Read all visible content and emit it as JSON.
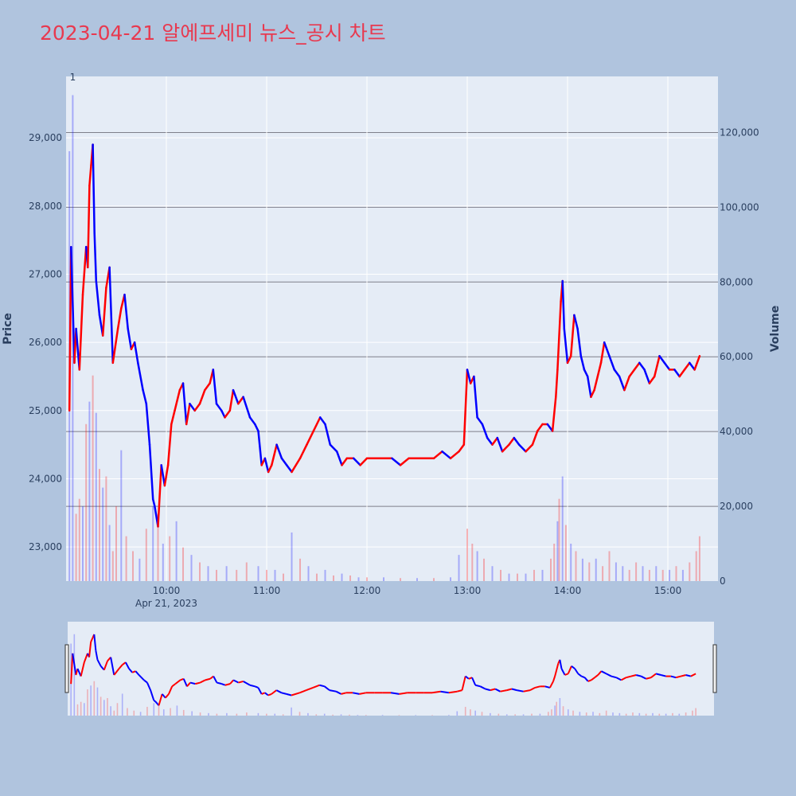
{
  "page": {
    "title": "2023-04-21 알에프세미 뉴스_공시 차트",
    "title_color": "#e8394f",
    "background": "#b0c4de",
    "plot_background": "#e5ecf6"
  },
  "chart_data": {
    "type": "candlestick",
    "x_range": [
      "09:00",
      "15:30"
    ],
    "price_range": [
      22500,
      29900
    ],
    "volume_range": [
      0,
      135000
    ],
    "x_ticks": [
      "10:00",
      "11:00",
      "12:00",
      "13:00",
      "14:00",
      "15:00"
    ],
    "x_date_label": "Apr 21, 2023",
    "price_ticks": [
      "23,000",
      "24,000",
      "25,000",
      "26,000",
      "27,000",
      "28,000",
      "29,000"
    ],
    "price_tick_values": [
      23000,
      24000,
      25000,
      26000,
      27000,
      28000,
      29000
    ],
    "volume_ticks": [
      "0",
      "20,000",
      "40,000",
      "60,000",
      "80,000",
      "100,000",
      "120,000"
    ],
    "volume_tick_values": [
      0,
      20000,
      40000,
      60000,
      80000,
      100000,
      120000
    ],
    "ylabel_left": "Price",
    "ylabel_right": "Volume",
    "annotation": "1",
    "up_color": "#ff0000",
    "down_color": "#0000ff",
    "grid": true,
    "rangeslider": true,
    "price_path": [
      [
        "09:02",
        25000
      ],
      [
        "09:03",
        27400
      ],
      [
        "09:05",
        25700
      ],
      [
        "09:06",
        26200
      ],
      [
        "09:08",
        25600
      ],
      [
        "09:10",
        26700
      ],
      [
        "09:12",
        27400
      ],
      [
        "09:13",
        27100
      ],
      [
        "09:14",
        28300
      ],
      [
        "09:15",
        28600
      ],
      [
        "09:16",
        28900
      ],
      [
        "09:17",
        27600
      ],
      [
        "09:18",
        26900
      ],
      [
        "09:20",
        26400
      ],
      [
        "09:22",
        26100
      ],
      [
        "09:24",
        26800
      ],
      [
        "09:26",
        27100
      ],
      [
        "09:28",
        25700
      ],
      [
        "09:31",
        26200
      ],
      [
        "09:33",
        26500
      ],
      [
        "09:35",
        26700
      ],
      [
        "09:37",
        26200
      ],
      [
        "09:39",
        25900
      ],
      [
        "09:41",
        26000
      ],
      [
        "09:43",
        25700
      ],
      [
        "09:46",
        25300
      ],
      [
        "09:48",
        25100
      ],
      [
        "09:50",
        24500
      ],
      [
        "09:52",
        23700
      ],
      [
        "09:53",
        23600
      ],
      [
        "09:55",
        23300
      ],
      [
        "09:57",
        24200
      ],
      [
        "09:59",
        23900
      ],
      [
        "10:01",
        24200
      ],
      [
        "10:03",
        24800
      ],
      [
        "10:05",
        25000
      ],
      [
        "10:08",
        25300
      ],
      [
        "10:10",
        25400
      ],
      [
        "10:12",
        24800
      ],
      [
        "10:14",
        25100
      ],
      [
        "10:17",
        25000
      ],
      [
        "10:20",
        25100
      ],
      [
        "10:23",
        25300
      ],
      [
        "10:26",
        25400
      ],
      [
        "10:28",
        25600
      ],
      [
        "10:30",
        25100
      ],
      [
        "10:33",
        25000
      ],
      [
        "10:35",
        24900
      ],
      [
        "10:38",
        25000
      ],
      [
        "10:40",
        25300
      ],
      [
        "10:43",
        25100
      ],
      [
        "10:46",
        25200
      ],
      [
        "10:50",
        24900
      ],
      [
        "10:53",
        24800
      ],
      [
        "10:55",
        24700
      ],
      [
        "10:57",
        24200
      ],
      [
        "10:59",
        24300
      ],
      [
        "11:01",
        24100
      ],
      [
        "11:03",
        24200
      ],
      [
        "11:06",
        24500
      ],
      [
        "11:09",
        24300
      ],
      [
        "11:12",
        24200
      ],
      [
        "11:15",
        24100
      ],
      [
        "11:20",
        24300
      ],
      [
        "11:24",
        24500
      ],
      [
        "11:28",
        24700
      ],
      [
        "11:32",
        24900
      ],
      [
        "11:35",
        24800
      ],
      [
        "11:38",
        24500
      ],
      [
        "11:42",
        24400
      ],
      [
        "11:45",
        24200
      ],
      [
        "11:48",
        24300
      ],
      [
        "11:52",
        24300
      ],
      [
        "11:56",
        24200
      ],
      [
        "12:00",
        24300
      ],
      [
        "12:05",
        24300
      ],
      [
        "12:10",
        24300
      ],
      [
        "12:15",
        24300
      ],
      [
        "12:20",
        24200
      ],
      [
        "12:25",
        24300
      ],
      [
        "12:30",
        24300
      ],
      [
        "12:35",
        24300
      ],
      [
        "12:40",
        24300
      ],
      [
        "12:45",
        24400
      ],
      [
        "12:50",
        24300
      ],
      [
        "12:55",
        24400
      ],
      [
        "12:58",
        24500
      ],
      [
        "13:00",
        25600
      ],
      [
        "13:02",
        25400
      ],
      [
        "13:04",
        25500
      ],
      [
        "13:06",
        24900
      ],
      [
        "13:09",
        24800
      ],
      [
        "13:12",
        24600
      ],
      [
        "13:15",
        24500
      ],
      [
        "13:18",
        24600
      ],
      [
        "13:21",
        24400
      ],
      [
        "13:25",
        24500
      ],
      [
        "13:28",
        24600
      ],
      [
        "13:31",
        24500
      ],
      [
        "13:35",
        24400
      ],
      [
        "13:39",
        24500
      ],
      [
        "13:42",
        24700
      ],
      [
        "13:45",
        24800
      ],
      [
        "13:48",
        24800
      ],
      [
        "13:51",
        24700
      ],
      [
        "13:53",
        25200
      ],
      [
        "13:54",
        25600
      ],
      [
        "13:56",
        26600
      ],
      [
        "13:57",
        26900
      ],
      [
        "13:58",
        26200
      ],
      [
        "14:00",
        25700
      ],
      [
        "14:02",
        25800
      ],
      [
        "14:04",
        26400
      ],
      [
        "14:06",
        26200
      ],
      [
        "14:08",
        25800
      ],
      [
        "14:10",
        25600
      ],
      [
        "14:12",
        25500
      ],
      [
        "14:14",
        25200
      ],
      [
        "14:16",
        25300
      ],
      [
        "14:18",
        25500
      ],
      [
        "14:20",
        25700
      ],
      [
        "14:22",
        26000
      ],
      [
        "14:25",
        25800
      ],
      [
        "14:28",
        25600
      ],
      [
        "14:31",
        25500
      ],
      [
        "14:34",
        25300
      ],
      [
        "14:37",
        25500
      ],
      [
        "14:40",
        25600
      ],
      [
        "14:43",
        25700
      ],
      [
        "14:46",
        25600
      ],
      [
        "14:49",
        25400
      ],
      [
        "14:52",
        25500
      ],
      [
        "14:55",
        25800
      ],
      [
        "14:58",
        25700
      ],
      [
        "15:01",
        25600
      ],
      [
        "15:04",
        25600
      ],
      [
        "15:07",
        25500
      ],
      [
        "15:10",
        25600
      ],
      [
        "15:13",
        25700
      ],
      [
        "15:16",
        25600
      ],
      [
        "15:19",
        25800
      ]
    ],
    "volume_bars": [
      [
        "09:02",
        115000,
        "down"
      ],
      [
        "09:04",
        130000,
        "down"
      ],
      [
        "09:06",
        18000,
        "up"
      ],
      [
        "09:08",
        22000,
        "up"
      ],
      [
        "09:10",
        20000,
        "down"
      ],
      [
        "09:12",
        42000,
        "up"
      ],
      [
        "09:14",
        48000,
        "down"
      ],
      [
        "09:16",
        55000,
        "up"
      ],
      [
        "09:18",
        45000,
        "down"
      ],
      [
        "09:20",
        30000,
        "up"
      ],
      [
        "09:22",
        25000,
        "down"
      ],
      [
        "09:24",
        28000,
        "up"
      ],
      [
        "09:26",
        15000,
        "down"
      ],
      [
        "09:28",
        8000,
        "up"
      ],
      [
        "09:30",
        20000,
        "up"
      ],
      [
        "09:33",
        35000,
        "down"
      ],
      [
        "09:36",
        12000,
        "up"
      ],
      [
        "09:40",
        8000,
        "up"
      ],
      [
        "09:44",
        6000,
        "down"
      ],
      [
        "09:48",
        14000,
        "up"
      ],
      [
        "09:52",
        20000,
        "down"
      ],
      [
        "09:55",
        18000,
        "up"
      ],
      [
        "09:58",
        10000,
        "down"
      ],
      [
        "10:02",
        12000,
        "up"
      ],
      [
        "10:06",
        16000,
        "down"
      ],
      [
        "10:10",
        9000,
        "up"
      ],
      [
        "10:15",
        7000,
        "down"
      ],
      [
        "10:20",
        5000,
        "up"
      ],
      [
        "10:25",
        4000,
        "down"
      ],
      [
        "10:30",
        3000,
        "up"
      ],
      [
        "10:36",
        4000,
        "down"
      ],
      [
        "10:42",
        3000,
        "up"
      ],
      [
        "10:48",
        5000,
        "up"
      ],
      [
        "10:55",
        4000,
        "down"
      ],
      [
        "11:00",
        3000,
        "up"
      ],
      [
        "11:05",
        3000,
        "down"
      ],
      [
        "11:10",
        2000,
        "up"
      ],
      [
        "11:15",
        13000,
        "down"
      ],
      [
        "11:20",
        6000,
        "up"
      ],
      [
        "11:25",
        4000,
        "down"
      ],
      [
        "11:30",
        2000,
        "up"
      ],
      [
        "11:35",
        3000,
        "down"
      ],
      [
        "11:40",
        1500,
        "up"
      ],
      [
        "11:45",
        2000,
        "down"
      ],
      [
        "11:50",
        1500,
        "up"
      ],
      [
        "11:55",
        1000,
        "down"
      ],
      [
        "12:00",
        1000,
        "up"
      ],
      [
        "12:10",
        1000,
        "down"
      ],
      [
        "12:20",
        800,
        "up"
      ],
      [
        "12:30",
        800,
        "down"
      ],
      [
        "12:40",
        800,
        "up"
      ],
      [
        "12:50",
        1000,
        "down"
      ],
      [
        "12:55",
        7000,
        "down"
      ],
      [
        "13:00",
        14000,
        "up"
      ],
      [
        "13:03",
        10000,
        "up"
      ],
      [
        "13:06",
        8000,
        "down"
      ],
      [
        "13:10",
        6000,
        "up"
      ],
      [
        "13:15",
        4000,
        "down"
      ],
      [
        "13:20",
        3000,
        "up"
      ],
      [
        "13:25",
        2000,
        "down"
      ],
      [
        "13:30",
        2000,
        "up"
      ],
      [
        "13:35",
        2000,
        "down"
      ],
      [
        "13:40",
        3000,
        "up"
      ],
      [
        "13:45",
        3000,
        "down"
      ],
      [
        "13:50",
        6000,
        "up"
      ],
      [
        "13:52",
        10000,
        "up"
      ],
      [
        "13:54",
        16000,
        "down"
      ],
      [
        "13:55",
        22000,
        "up"
      ],
      [
        "13:57",
        28000,
        "down"
      ],
      [
        "13:59",
        15000,
        "up"
      ],
      [
        "14:02",
        10000,
        "down"
      ],
      [
        "14:05",
        8000,
        "up"
      ],
      [
        "14:09",
        6000,
        "down"
      ],
      [
        "14:13",
        5000,
        "up"
      ],
      [
        "14:17",
        6000,
        "down"
      ],
      [
        "14:21",
        4000,
        "up"
      ],
      [
        "14:25",
        8000,
        "up"
      ],
      [
        "14:29",
        5000,
        "down"
      ],
      [
        "14:33",
        4000,
        "down"
      ],
      [
        "14:37",
        3000,
        "up"
      ],
      [
        "14:41",
        5000,
        "up"
      ],
      [
        "14:45",
        4000,
        "down"
      ],
      [
        "14:49",
        3000,
        "up"
      ],
      [
        "14:53",
        4000,
        "down"
      ],
      [
        "14:57",
        3000,
        "up"
      ],
      [
        "15:01",
        3000,
        "down"
      ],
      [
        "15:05",
        4000,
        "up"
      ],
      [
        "15:09",
        3000,
        "down"
      ],
      [
        "15:13",
        5000,
        "up"
      ],
      [
        "15:17",
        8000,
        "up"
      ],
      [
        "15:19",
        12000,
        "up"
      ]
    ]
  }
}
